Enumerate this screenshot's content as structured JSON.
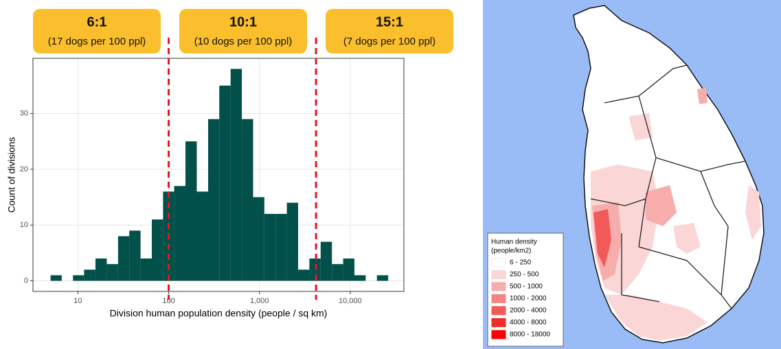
{
  "chart_data": {
    "type": "histogram",
    "xlabel": "Division human population density (people / sq km)",
    "ylabel": "Count of divisions",
    "log_x": true,
    "color": "#02504a",
    "bins": [
      5.0,
      6.64,
      8.83,
      11.7,
      15.6,
      20.8,
      27.7,
      36.8,
      49.0,
      65.2,
      86.7,
      115,
      153,
      204,
      272,
      361,
      481,
      640,
      851,
      1132,
      1507,
      2004,
      2667,
      3548,
      4721,
      6281,
      8356,
      11117,
      14791,
      19679,
      26182
    ],
    "values": [
      1,
      0,
      1,
      2,
      4,
      3,
      8,
      9,
      4,
      11,
      16,
      17,
      25,
      16,
      29,
      35,
      38,
      29,
      15,
      12,
      12,
      14,
      2,
      4,
      7,
      3,
      4,
      1,
      0,
      1
    ],
    "xlim": [
      3.2,
      39000
    ],
    "ylim": [
      -1.9,
      39.9
    ],
    "xticks": [
      10,
      100,
      {
        "value": 1000,
        "label": "1,000"
      },
      {
        "value": 10000,
        "label": "10,000"
      }
    ],
    "yticks": [
      0,
      10,
      20,
      30
    ],
    "grid": true,
    "vlines": [
      100,
      4200
    ],
    "vline_color": "#e8141b",
    "annotations": [
      {
        "title": "6:1",
        "text": "(17 dogs per 100 ppl)"
      },
      {
        "title": "10:1",
        "text": "(10 dogs per 100 ppl)"
      },
      {
        "title": "15:1",
        "text": "(7 dogs per 100 ppl)"
      }
    ]
  },
  "map": {
    "legend": {
      "title": [
        "Human density",
        "(people/km2)"
      ],
      "items": [
        {
          "label": "6 - 250",
          "color": "#ffffff"
        },
        {
          "label": "250 - 500",
          "color": "#fbd6d6"
        },
        {
          "label": "500 - 1000",
          "color": "#f8adad"
        },
        {
          "label": "1000 - 2000",
          "color": "#f58484"
        },
        {
          "label": "2000 - 4000",
          "color": "#f25a5a"
        },
        {
          "label": "4000 - 8000",
          "color": "#f02c2c"
        },
        {
          "label": "8000 - 18000",
          "color": "#ff0000"
        }
      ]
    }
  }
}
